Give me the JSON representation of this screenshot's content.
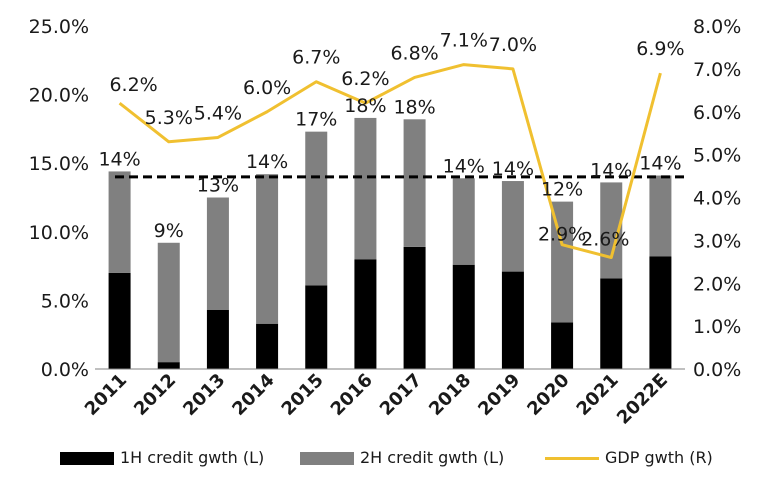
{
  "chart_data": {
    "type": "bar",
    "stacked": true,
    "categories": [
      "2011",
      "2012",
      "2013",
      "2014",
      "2015",
      "2016",
      "2017",
      "2018",
      "2019",
      "2020",
      "2021",
      "2022E"
    ],
    "series": [
      {
        "name": "1H credit gwth (L)",
        "axis": "left",
        "type": "bar",
        "color": "#000000",
        "values": [
          7.0,
          0.5,
          4.3,
          3.3,
          6.1,
          8.0,
          8.9,
          7.6,
          7.1,
          3.4,
          6.6,
          8.2
        ]
      },
      {
        "name": "2H credit gwth (L)",
        "axis": "left",
        "type": "bar",
        "color": "#808080",
        "values": [
          7.4,
          8.7,
          8.2,
          10.9,
          11.2,
          10.3,
          9.3,
          6.3,
          6.6,
          8.8,
          7.0,
          5.9
        ]
      },
      {
        "name": "GDP gwth (R)",
        "axis": "right",
        "type": "line",
        "color": "#f0c030",
        "values": [
          6.2,
          5.3,
          5.4,
          6.0,
          6.7,
          6.2,
          6.8,
          7.1,
          7.0,
          2.9,
          2.6,
          6.9
        ]
      }
    ],
    "total_labels": [
      "14%",
      "9%",
      "13%",
      "14%",
      "17%",
      "18%",
      "18%",
      "14%",
      "14%",
      "12%",
      "14%",
      "14%"
    ],
    "gdp_labels": [
      "6.2%",
      "5.3%",
      "5.4%",
      "6.0%",
      "6.7%",
      "6.2%",
      "6.8%",
      "7.1%",
      "7.0%",
      "2.9%",
      "2.6%",
      "6.9%"
    ],
    "reference_line": {
      "value": 14.0,
      "axis": "left",
      "style": "dashed",
      "color": "#000000"
    },
    "left_axis": {
      "ylim": [
        0,
        25
      ],
      "ticks": [
        "0.0%",
        "5.0%",
        "10.0%",
        "15.0%",
        "20.0%",
        "25.0%"
      ]
    },
    "right_axis": {
      "ylim": [
        0,
        8
      ],
      "ticks": [
        "0.0%",
        "1.0%",
        "2.0%",
        "3.0%",
        "4.0%",
        "5.0%",
        "6.0%",
        "7.0%",
        "8.0%"
      ]
    },
    "legend_position": "bottom",
    "grid": false
  },
  "legend": {
    "items": [
      {
        "label": "1H credit gwth (L)",
        "color": "#000000",
        "kind": "bar"
      },
      {
        "label": "2H credit gwth (L)",
        "color": "#808080",
        "kind": "bar"
      },
      {
        "label": "GDP gwth (R)",
        "color": "#f0c030",
        "kind": "line"
      }
    ]
  }
}
